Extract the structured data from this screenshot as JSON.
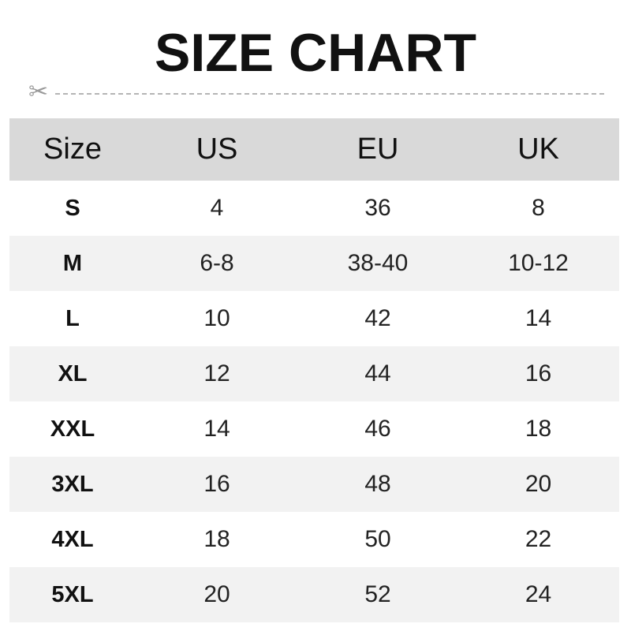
{
  "title": "SIZE CHART",
  "columns": [
    "Size",
    "US",
    "EU",
    "UK"
  ],
  "rows": [
    [
      "S",
      "4",
      "36",
      "8"
    ],
    [
      "M",
      "6-8",
      "38-40",
      "10-12"
    ],
    [
      "L",
      "10",
      "42",
      "14"
    ],
    [
      "XL",
      "12",
      "44",
      "16"
    ],
    [
      "XXL",
      "14",
      "46",
      "18"
    ],
    [
      "3XL",
      "16",
      "48",
      "20"
    ],
    [
      "4XL",
      "18",
      "50",
      "22"
    ],
    [
      "5XL",
      "20",
      "52",
      "24"
    ]
  ],
  "colors": {
    "header_bg": "#d9d9d9",
    "alt_row_bg": "#f2f2f2"
  },
  "icons": {
    "cut_line": "scissors-icon"
  }
}
